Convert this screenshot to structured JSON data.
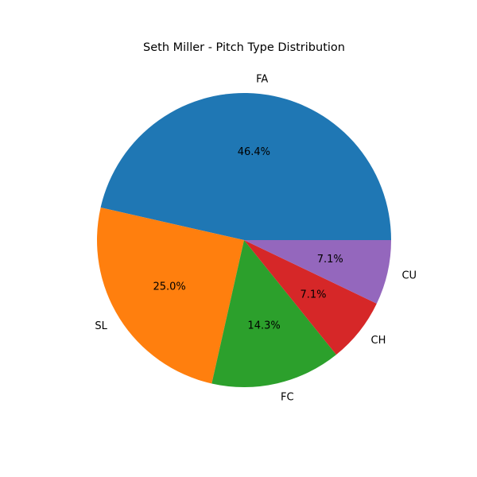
{
  "chart_data": {
    "type": "pie",
    "title": "Seth Miller - Pitch Type Distribution",
    "categories": [
      "FA",
      "SL",
      "FC",
      "CH",
      "CU"
    ],
    "values": [
      46.4,
      25.0,
      14.3,
      7.1,
      7.1
    ],
    "percent_labels": [
      "46.4%",
      "25.0%",
      "14.3%",
      "7.1%",
      "7.1%"
    ],
    "colors": [
      "#1f77b4",
      "#ff7f0e",
      "#2ca02c",
      "#d62728",
      "#9467bd"
    ],
    "start_angle_deg": 0,
    "direction": "counterclockwise"
  }
}
